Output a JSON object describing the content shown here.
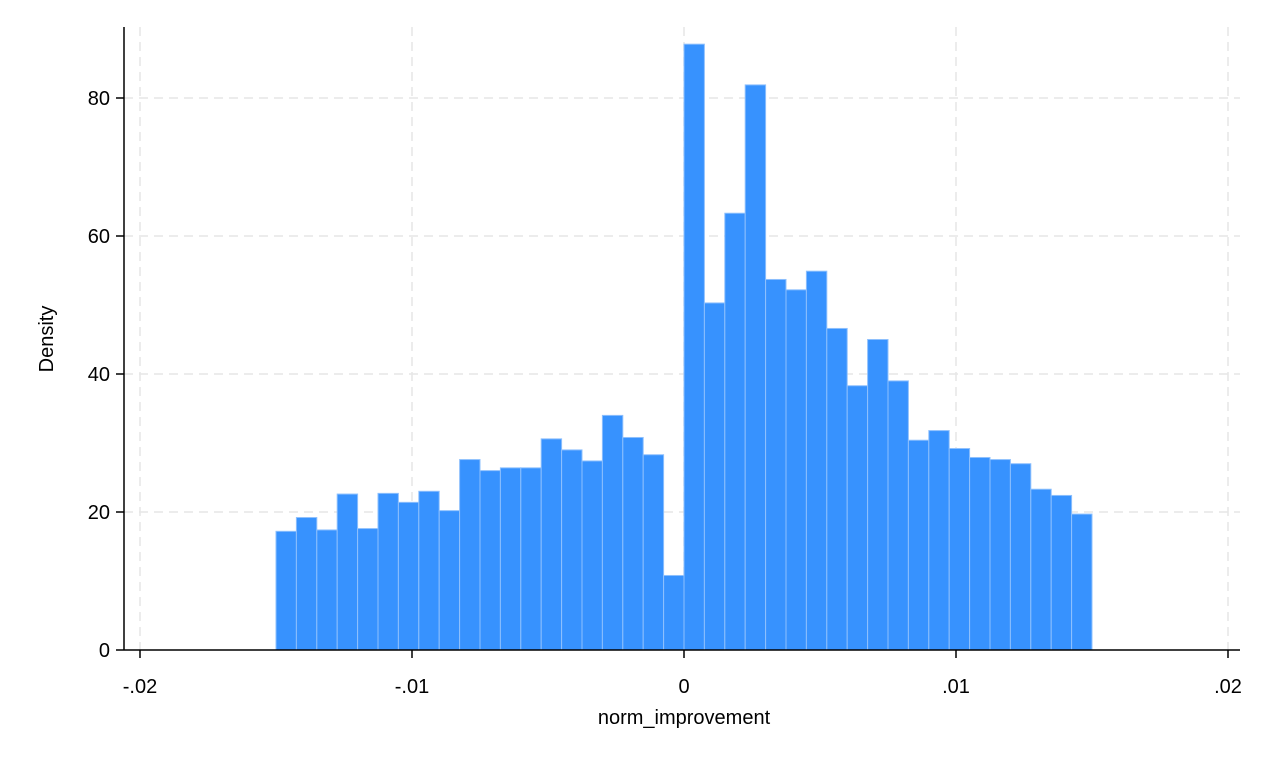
{
  "chart_data": {
    "type": "bar",
    "subtype": "histogram",
    "title": "",
    "xlabel": "norm_improvement",
    "ylabel": "Density",
    "xlim": [
      -0.02,
      0.02
    ],
    "ylim": [
      0,
      90
    ],
    "bin_width": 0.00075,
    "x_ticks": [
      {
        "value": -0.02,
        "label": "-.02"
      },
      {
        "value": -0.01,
        "label": "-.01"
      },
      {
        "value": 0,
        "label": "0"
      },
      {
        "value": 0.01,
        "label": ".01"
      },
      {
        "value": 0.02,
        "label": ".02"
      }
    ],
    "y_ticks": [
      {
        "value": 0,
        "label": "0"
      },
      {
        "value": 20,
        "label": "20"
      },
      {
        "value": 40,
        "label": "40"
      },
      {
        "value": 60,
        "label": "60"
      },
      {
        "value": 80,
        "label": "80"
      }
    ],
    "grid": true,
    "legend": "none",
    "bins": [
      {
        "x0": -0.015,
        "value": 17.2
      },
      {
        "x0": -0.01425,
        "value": 19.2
      },
      {
        "x0": -0.0135,
        "value": 17.4
      },
      {
        "x0": -0.01275,
        "value": 22.6
      },
      {
        "x0": -0.012,
        "value": 17.6
      },
      {
        "x0": -0.01125,
        "value": 22.7
      },
      {
        "x0": -0.0105,
        "value": 21.4
      },
      {
        "x0": -0.00975,
        "value": 23.0
      },
      {
        "x0": -0.009,
        "value": 20.2
      },
      {
        "x0": -0.00825,
        "value": 27.6
      },
      {
        "x0": -0.0075,
        "value": 26.0
      },
      {
        "x0": -0.00675,
        "value": 26.4
      },
      {
        "x0": -0.006,
        "value": 26.4
      },
      {
        "x0": -0.00525,
        "value": 30.6
      },
      {
        "x0": -0.0045,
        "value": 29.0
      },
      {
        "x0": -0.00375,
        "value": 27.4
      },
      {
        "x0": -0.003,
        "value": 34.0
      },
      {
        "x0": -0.00225,
        "value": 30.8
      },
      {
        "x0": -0.0015,
        "value": 28.3
      },
      {
        "x0": -0.00075,
        "value": 10.8
      },
      {
        "x0": 0.0,
        "value": 87.8
      },
      {
        "x0": 0.00075,
        "value": 50.3
      },
      {
        "x0": 0.0015,
        "value": 63.3
      },
      {
        "x0": 0.00225,
        "value": 81.9
      },
      {
        "x0": 0.003,
        "value": 53.7
      },
      {
        "x0": 0.00375,
        "value": 52.2
      },
      {
        "x0": 0.0045,
        "value": 54.9
      },
      {
        "x0": 0.00525,
        "value": 46.6
      },
      {
        "x0": 0.006,
        "value": 38.3
      },
      {
        "x0": 0.00675,
        "value": 45.0
      },
      {
        "x0": 0.0075,
        "value": 39.0
      },
      {
        "x0": 0.00825,
        "value": 30.4
      },
      {
        "x0": 0.009,
        "value": 31.8
      },
      {
        "x0": 0.00975,
        "value": 29.2
      },
      {
        "x0": 0.0105,
        "value": 27.9
      },
      {
        "x0": 0.01125,
        "value": 27.6
      },
      {
        "x0": 0.012,
        "value": 27.0
      },
      {
        "x0": 0.01275,
        "value": 23.3
      },
      {
        "x0": 0.0135,
        "value": 22.4
      },
      {
        "x0": 0.01425,
        "value": 19.7
      }
    ],
    "colors": {
      "bar_fill": "#3792fe",
      "bar_edge": "#8ec0fd",
      "grid": "#e6e6e6",
      "axis": "#000000"
    }
  }
}
